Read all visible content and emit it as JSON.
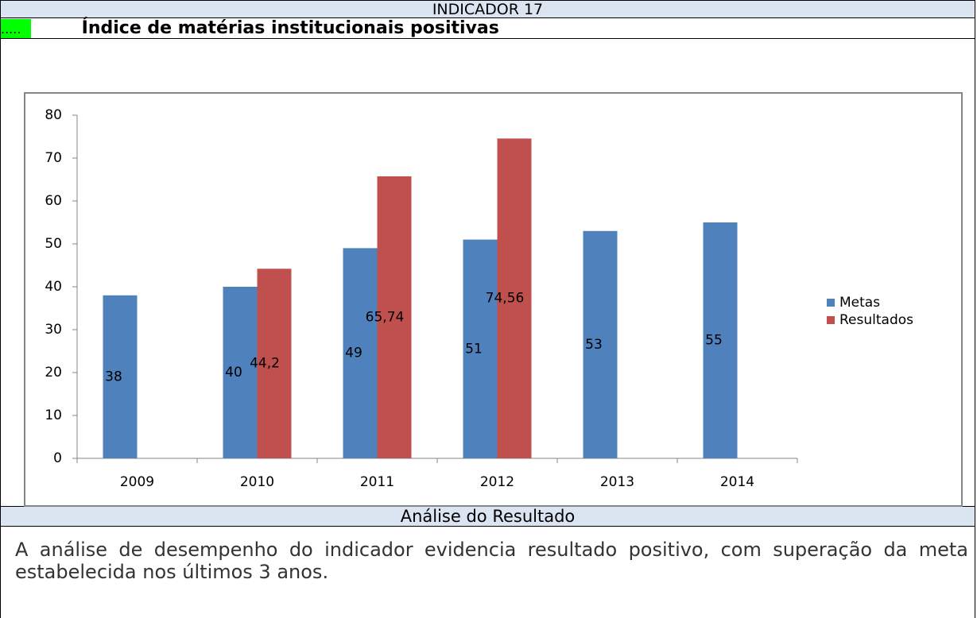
{
  "header": {
    "title": "INDICADOR 17",
    "marker": ".....",
    "subtitle": "Índice de matérias institucionais positivas"
  },
  "chart_data": {
    "type": "bar",
    "categories": [
      "2009",
      "2010",
      "2011",
      "2012",
      "2013",
      "2014"
    ],
    "series": [
      {
        "name": "Metas",
        "color": "#4f81bd",
        "values": [
          38,
          40,
          49,
          51,
          53,
          55
        ]
      },
      {
        "name": "Resultados",
        "color": "#c0504d",
        "values": [
          null,
          44.2,
          65.74,
          74.56,
          null,
          null
        ],
        "value_labels": [
          null,
          "44,2",
          "65,74",
          "74,56",
          null,
          null
        ]
      }
    ],
    "ylim": [
      0,
      80
    ],
    "yticks": [
      0,
      10,
      20,
      30,
      40,
      50,
      60,
      70,
      80
    ],
    "legend": "right"
  },
  "analysis": {
    "title": "Análise do Resultado",
    "text": "A análise de desempenho do indicador evidencia resultado positivo, com superação da meta estabelecida nos últimos 3 anos."
  }
}
